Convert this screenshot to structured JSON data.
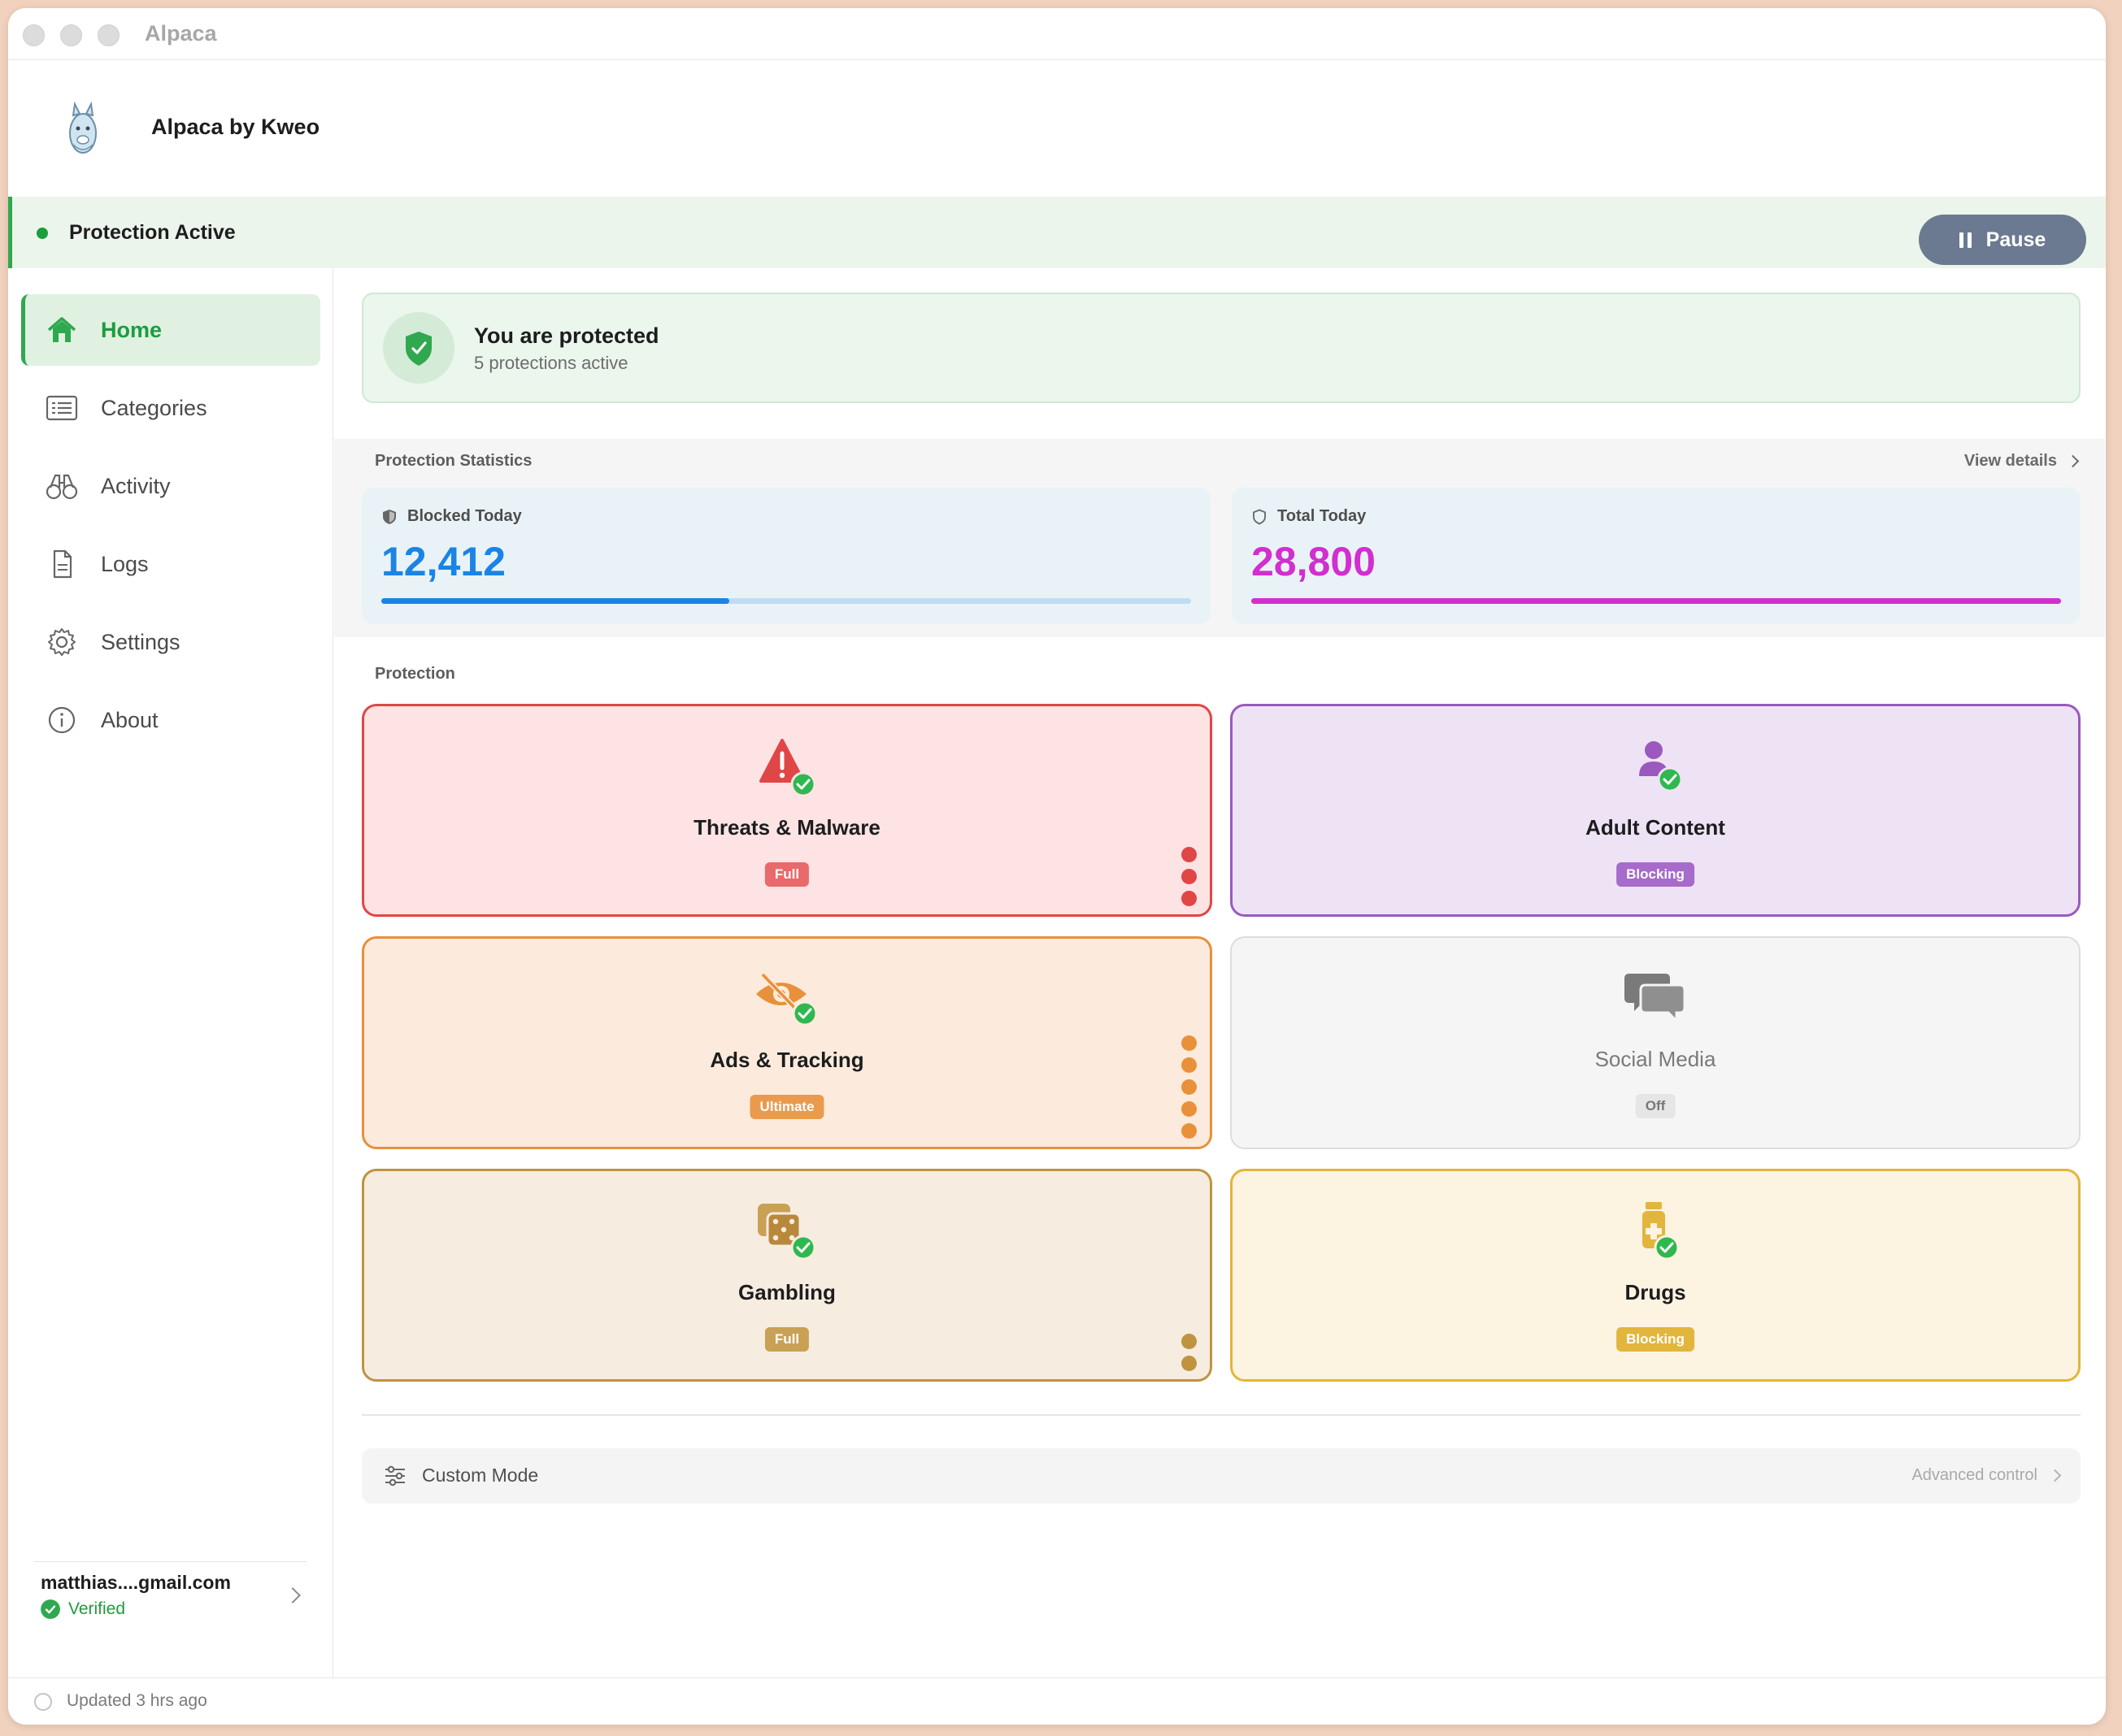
{
  "window": {
    "title": "Alpaca"
  },
  "header": {
    "app_name": "Alpaca by Kweo"
  },
  "status": {
    "text": "Protection Active",
    "pause_label": "Pause"
  },
  "sidebar": {
    "items": [
      {
        "label": "Home",
        "icon": "home-icon",
        "active": true
      },
      {
        "label": "Categories",
        "icon": "list-icon",
        "active": false
      },
      {
        "label": "Activity",
        "icon": "binoculars-icon",
        "active": false
      },
      {
        "label": "Logs",
        "icon": "document-icon",
        "active": false
      },
      {
        "label": "Settings",
        "icon": "gear-icon",
        "active": false
      },
      {
        "label": "About",
        "icon": "info-icon",
        "active": false
      }
    ],
    "account": {
      "email": "matthias....gmail.com",
      "status": "Verified"
    }
  },
  "main": {
    "protected": {
      "title": "You are protected",
      "subtitle": "5 protections active"
    },
    "stats": {
      "section_label": "Protection Statistics",
      "view_details": "View details",
      "blocked": {
        "label": "Blocked Today",
        "value": "12,412",
        "fraction": 0.43
      },
      "total": {
        "label": "Total Today",
        "value": "28,800",
        "fraction": 1.0
      }
    },
    "protection": {
      "section_label": "Protection",
      "tiles": [
        {
          "title": "Threats & Malware",
          "badge": "Full",
          "icon": "warning-icon",
          "level_dots": 3
        },
        {
          "title": "Adult Content",
          "badge": "Blocking",
          "icon": "person-icon",
          "level_dots": 0
        },
        {
          "title": "Ads & Tracking",
          "badge": "Ultimate",
          "icon": "eye-slash-icon",
          "level_dots": 5
        },
        {
          "title": "Social Media",
          "badge": "Off",
          "icon": "chat-bubbles-icon",
          "level_dots": 0
        },
        {
          "title": "Gambling",
          "badge": "Full",
          "icon": "dice-icon",
          "level_dots": 2
        },
        {
          "title": "Drugs",
          "badge": "Blocking",
          "icon": "pill-bottle-icon",
          "level_dots": 0
        }
      ]
    },
    "custom_mode": {
      "label": "Custom Mode",
      "hint": "Advanced control"
    }
  },
  "footer": {
    "updated": "Updated 3 hrs ago"
  },
  "colors": {
    "accent_green": "#2fa84f",
    "blocked_blue": "#1a84e6",
    "total_magenta": "#d22ed0",
    "threats_red": "#e04646",
    "adult_purple": "#9b59c0",
    "ads_orange": "#e9903a",
    "social_gray": "#8a8a8a",
    "gambling_gold": "#bf9340",
    "drugs_yellow": "#e2b53c"
  }
}
